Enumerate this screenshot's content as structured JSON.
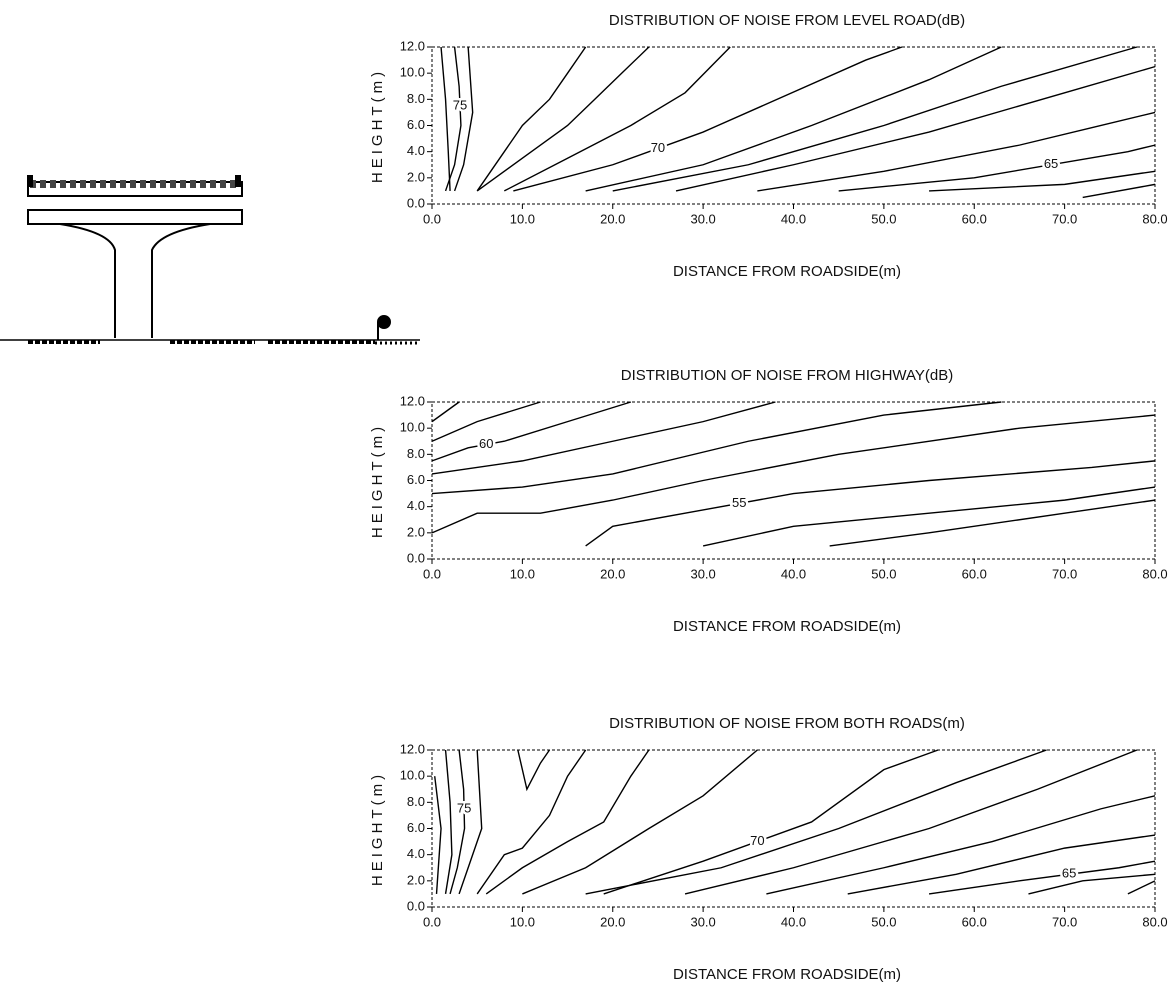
{
  "chart_data": [
    {
      "type": "contour",
      "title": "DISTRIBUTION OF NOISE FROM LEVEL ROAD(dB)",
      "xlabel": "DISTANCE FROM ROADSIDE(m)",
      "ylabel": "HEIGHT(m)",
      "xlim": [
        0,
        80
      ],
      "ylim": [
        0,
        12
      ],
      "color": "#000000",
      "xticks": [
        {
          "value": 0,
          "label": "0.0"
        },
        {
          "value": 10,
          "label": "10.0"
        },
        {
          "value": 20,
          "label": "20.0"
        },
        {
          "value": 30,
          "label": "30.0"
        },
        {
          "value": 40,
          "label": "40.0"
        },
        {
          "value": 50,
          "label": "50.0"
        },
        {
          "value": 60,
          "label": "60.0"
        },
        {
          "value": 70,
          "label": "70.0"
        },
        {
          "value": 80,
          "label": "80.0"
        }
      ],
      "yticks": [
        {
          "value": 0,
          "label": "0.0"
        },
        {
          "value": 2,
          "label": "2.0"
        },
        {
          "value": 4,
          "label": "4.0"
        },
        {
          "value": 6,
          "label": "6.0"
        },
        {
          "value": 8,
          "label": "8.0"
        },
        {
          "value": 10,
          "label": "10.0"
        },
        {
          "value": 12,
          "label": "12.0"
        }
      ],
      "contour_labels": [
        75,
        70,
        65
      ],
      "contours": [
        {
          "level": 76,
          "x": [
            1,
            1.5,
            1.8,
            2
          ],
          "y": [
            12,
            8,
            4,
            1
          ]
        },
        {
          "level": 75,
          "x": [
            2.5,
            3,
            3.2,
            2.5,
            1.5
          ],
          "y": [
            12,
            9,
            6,
            3,
            1
          ]
        },
        {
          "level": 74,
          "x": [
            4,
            4.5,
            3.5,
            2.5
          ],
          "y": [
            12,
            7,
            3,
            1
          ]
        },
        {
          "level": 73,
          "x": [
            5,
            8,
            10,
            13,
            15,
            17
          ],
          "y": [
            1,
            4,
            6,
            8,
            10,
            12
          ]
        },
        {
          "level": 72,
          "x": [
            5,
            10,
            15,
            18,
            21,
            24
          ],
          "y": [
            1,
            3.5,
            6,
            8,
            10,
            12
          ]
        },
        {
          "level": 71,
          "x": [
            8,
            15,
            22,
            28,
            33
          ],
          "y": [
            1,
            3.5,
            6,
            8.5,
            12
          ]
        },
        {
          "level": 70,
          "x": [
            9,
            20,
            30,
            48,
            52
          ],
          "y": [
            1,
            3,
            5.5,
            11,
            12
          ]
        },
        {
          "level": 69,
          "x": [
            17,
            30,
            42,
            55,
            63
          ],
          "y": [
            1,
            3,
            6,
            9.5,
            12
          ]
        },
        {
          "level": 68,
          "x": [
            20,
            35,
            50,
            63,
            78
          ],
          "y": [
            1,
            3,
            6,
            9,
            12
          ]
        },
        {
          "level": 67,
          "x": [
            27,
            40,
            55,
            70,
            80
          ],
          "y": [
            1,
            3,
            5.5,
            8.5,
            10.5
          ]
        },
        {
          "level": 66,
          "x": [
            36,
            50,
            65,
            80
          ],
          "y": [
            1,
            2.5,
            4.5,
            7
          ]
        },
        {
          "level": 65,
          "x": [
            45,
            60,
            77,
            80
          ],
          "y": [
            1,
            2,
            4,
            4.5
          ]
        },
        {
          "level": 64,
          "x": [
            55,
            70,
            80
          ],
          "y": [
            1,
            1.5,
            2.5
          ]
        },
        {
          "level": 63,
          "x": [
            72,
            80
          ],
          "y": [
            0.5,
            1.5
          ]
        }
      ]
    },
    {
      "type": "contour",
      "title": "DISTRIBUTION OF NOISE FROM HIGHWAY(dB)",
      "xlabel": "DISTANCE FROM ROADSIDE(m)",
      "ylabel": "HEIGHT(m)",
      "xlim": [
        0,
        80
      ],
      "ylim": [
        0,
        12
      ],
      "color": "#000000",
      "xticks": [
        {
          "value": 0,
          "label": "0.0"
        },
        {
          "value": 10,
          "label": "10.0"
        },
        {
          "value": 20,
          "label": "20.0"
        },
        {
          "value": 30,
          "label": "30.0"
        },
        {
          "value": 40,
          "label": "40.0"
        },
        {
          "value": 50,
          "label": "50.0"
        },
        {
          "value": 60,
          "label": "60.0"
        },
        {
          "value": 70,
          "label": "70.0"
        },
        {
          "value": 80,
          "label": "80.0"
        }
      ],
      "yticks": [
        {
          "value": 0,
          "label": "0.0"
        },
        {
          "value": 2,
          "label": "2.0"
        },
        {
          "value": 4,
          "label": "4.0"
        },
        {
          "value": 6,
          "label": "6.0"
        },
        {
          "value": 8,
          "label": "8.0"
        },
        {
          "value": 10,
          "label": "10.0"
        },
        {
          "value": 12,
          "label": "12.0"
        }
      ],
      "contour_labels": [
        60,
        55
      ],
      "contours": [
        {
          "level": 62,
          "x": [
            0,
            3
          ],
          "y": [
            10.5,
            12
          ]
        },
        {
          "level": 61,
          "x": [
            0,
            5,
            12
          ],
          "y": [
            9,
            10.5,
            12
          ]
        },
        {
          "level": 60,
          "x": [
            0,
            4,
            8,
            15,
            22
          ],
          "y": [
            7.5,
            8.5,
            9,
            10.5,
            12
          ]
        },
        {
          "level": 59,
          "x": [
            0,
            10,
            20,
            30,
            38
          ],
          "y": [
            6.5,
            7.5,
            9,
            10.5,
            12
          ]
        },
        {
          "level": 58,
          "x": [
            0,
            10,
            20,
            35,
            50,
            63
          ],
          "y": [
            5,
            5.5,
            6.5,
            9,
            11,
            12
          ]
        },
        {
          "level": 57,
          "x": [
            0,
            5,
            12,
            20,
            30,
            45,
            65,
            80
          ],
          "y": [
            2,
            3.5,
            3.5,
            4.5,
            6,
            8,
            10,
            11
          ]
        },
        {
          "level": 55,
          "x": [
            17,
            20,
            28,
            40,
            55,
            73,
            80
          ],
          "y": [
            1,
            2.5,
            3.5,
            5,
            6,
            7,
            7.5
          ]
        },
        {
          "level": 54,
          "x": [
            30,
            40,
            55,
            70,
            80
          ],
          "y": [
            1,
            2.5,
            3.5,
            4.5,
            5.5
          ]
        },
        {
          "level": 53,
          "x": [
            44,
            55,
            70,
            80
          ],
          "y": [
            1,
            2,
            3.5,
            4.5
          ]
        }
      ]
    },
    {
      "type": "contour",
      "title": "DISTRIBUTION OF NOISE FROM BOTH ROADS(m)",
      "xlabel": "DISTANCE FROM ROADSIDE(m)",
      "ylabel": "HEIGHT(m)",
      "xlim": [
        0,
        80
      ],
      "ylim": [
        0,
        12
      ],
      "color": "#000000",
      "xticks": [
        {
          "value": 0,
          "label": "0.0"
        },
        {
          "value": 10,
          "label": "10.0"
        },
        {
          "value": 20,
          "label": "20.0"
        },
        {
          "value": 30,
          "label": "30.0"
        },
        {
          "value": 40,
          "label": "40.0"
        },
        {
          "value": 50,
          "label": "50.0"
        },
        {
          "value": 60,
          "label": "60.0"
        },
        {
          "value": 70,
          "label": "70.0"
        },
        {
          "value": 80,
          "label": "80.0"
        }
      ],
      "yticks": [
        {
          "value": 0,
          "label": "0.0"
        },
        {
          "value": 2,
          "label": "2.0"
        },
        {
          "value": 4,
          "label": "4.0"
        },
        {
          "value": 6,
          "label": "6.0"
        },
        {
          "value": 8,
          "label": "8.0"
        },
        {
          "value": 10,
          "label": "10.0"
        },
        {
          "value": 12,
          "label": "12.0"
        }
      ],
      "contour_labels": [
        75,
        70,
        65
      ],
      "contours": [
        {
          "level": 77,
          "x": [
            0.3,
            1,
            0.5
          ],
          "y": [
            10,
            6,
            1
          ]
        },
        {
          "level": 76,
          "x": [
            1.5,
            2,
            2.2,
            1.5
          ],
          "y": [
            12,
            8,
            4,
            1
          ]
        },
        {
          "level": 75,
          "x": [
            3,
            3.5,
            3.6,
            2.8,
            2
          ],
          "y": [
            12,
            9,
            6,
            3,
            1
          ]
        },
        {
          "level": 74,
          "x": [
            5,
            5.5,
            4,
            3
          ],
          "y": [
            12,
            6,
            3,
            1
          ]
        },
        {
          "level": 76,
          "x": [
            9.5,
            10.5,
            12,
            13
          ],
          "y": [
            12,
            9,
            11,
            12
          ]
        },
        {
          "level": 73,
          "x": [
            5,
            8,
            10,
            13,
            15,
            17
          ],
          "y": [
            1,
            4,
            4.5,
            7,
            10,
            12
          ]
        },
        {
          "level": 72,
          "x": [
            6,
            10,
            15,
            19,
            22,
            24
          ],
          "y": [
            1,
            3,
            5,
            6.5,
            10,
            12
          ]
        },
        {
          "level": 71,
          "x": [
            10,
            17,
            24,
            30,
            36
          ],
          "y": [
            1,
            3,
            6,
            8.5,
            12
          ]
        },
        {
          "level": 70,
          "x": [
            19,
            30,
            42,
            50,
            56
          ],
          "y": [
            1,
            3.5,
            6.5,
            10.5,
            12
          ]
        },
        {
          "level": 69,
          "x": [
            17,
            32,
            45,
            58,
            68
          ],
          "y": [
            1,
            3,
            6,
            9.5,
            12
          ]
        },
        {
          "level": 68,
          "x": [
            28,
            40,
            55,
            67,
            78
          ],
          "y": [
            1,
            3,
            6,
            9,
            12
          ]
        },
        {
          "level": 67,
          "x": [
            37,
            50,
            62,
            74,
            80
          ],
          "y": [
            1,
            3,
            5,
            7.5,
            8.5
          ]
        },
        {
          "level": 66,
          "x": [
            46,
            58,
            70,
            80
          ],
          "y": [
            1,
            2.5,
            4.5,
            5.5
          ]
        },
        {
          "level": 65,
          "x": [
            55,
            65,
            76,
            80
          ],
          "y": [
            1,
            2,
            3,
            3.5
          ]
        },
        {
          "level": 64,
          "x": [
            66,
            72,
            80
          ],
          "y": [
            1,
            2,
            2.5
          ]
        },
        {
          "level": 63,
          "x": [
            77,
            80
          ],
          "y": [
            1,
            2
          ]
        }
      ]
    }
  ]
}
